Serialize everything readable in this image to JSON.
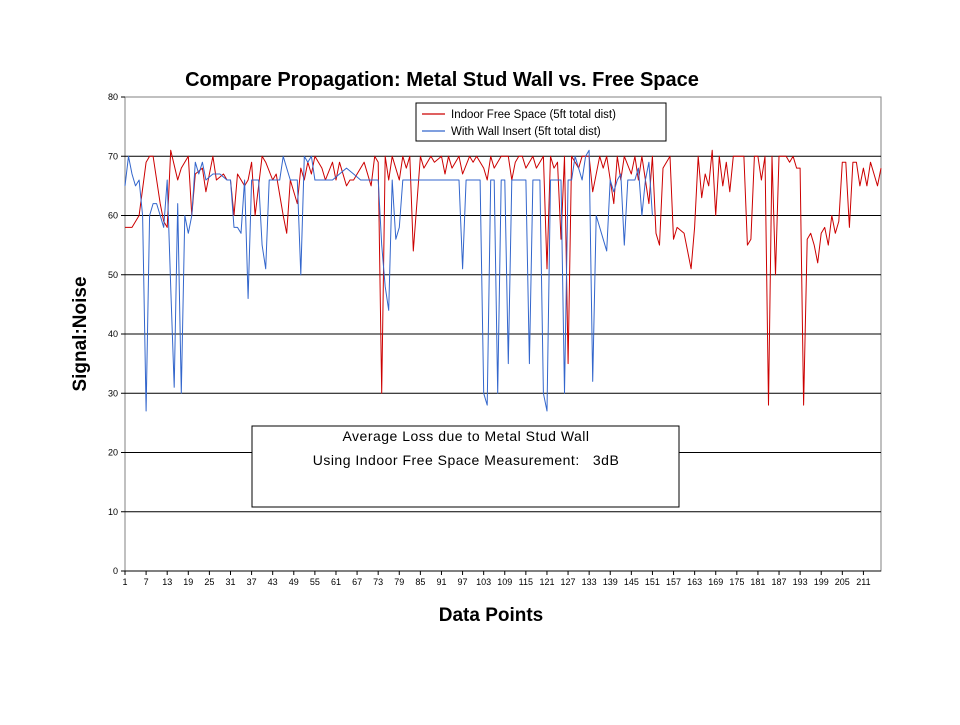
{
  "chart_data": {
    "type": "line",
    "title": "Compare Propagation: Metal Stud Wall vs. Free Space",
    "xlabel": "Data Points",
    "ylabel": "Signal:Noise",
    "ylim": [
      0,
      80
    ],
    "yticks": [
      0,
      10,
      20,
      30,
      40,
      50,
      60,
      70,
      80
    ],
    "xlim": [
      1,
      216
    ],
    "xticks": [
      1,
      7,
      13,
      19,
      25,
      31,
      37,
      43,
      49,
      55,
      61,
      67,
      73,
      79,
      85,
      91,
      97,
      103,
      109,
      115,
      121,
      127,
      133,
      139,
      145,
      151,
      157,
      163,
      169,
      175,
      181,
      187,
      193,
      199,
      205,
      211
    ],
    "grid": "horizontal",
    "legend_position": "top-right",
    "annotation": {
      "line1": "Average Loss due to Metal Stud Wall",
      "line2": "Using Indoor Free Space Measurement:   3dB"
    },
    "series": [
      {
        "name": "Indoor Free Space (5ft total dist)",
        "color": "#cc0000",
        "x": [
          1,
          3,
          5,
          7,
          8,
          9,
          11,
          12,
          13,
          14,
          16,
          17,
          19,
          20,
          21,
          23,
          24,
          26,
          27,
          29,
          30,
          31,
          32,
          33,
          35,
          36,
          37,
          38,
          40,
          41,
          43,
          44,
          46,
          47,
          48,
          50,
          51,
          52,
          53,
          54,
          55,
          57,
          58,
          60,
          61,
          62,
          64,
          65,
          66,
          67,
          69,
          71,
          72,
          73,
          74,
          75,
          76,
          77,
          79,
          80,
          81,
          82,
          83,
          85,
          86,
          88,
          89,
          91,
          92,
          93,
          94,
          96,
          97,
          99,
          100,
          101,
          103,
          104,
          105,
          106,
          108,
          110,
          111,
          112,
          113,
          114,
          115,
          117,
          118,
          120,
          121,
          122,
          123,
          124,
          125,
          126,
          127,
          128,
          130,
          131,
          132,
          133,
          134,
          136,
          137,
          138,
          140,
          141,
          142,
          143,
          145,
          146,
          147,
          148,
          150,
          151,
          152,
          153,
          154,
          156,
          157,
          158,
          160,
          162,
          163,
          164,
          165,
          166,
          167,
          168,
          169,
          170,
          171,
          172,
          173,
          174,
          176,
          177,
          178,
          179,
          180,
          181,
          182,
          183,
          184,
          185,
          186,
          187,
          188,
          189,
          190,
          191,
          192,
          193,
          194,
          195,
          196,
          197,
          198,
          199,
          200,
          201,
          202,
          203,
          204,
          205,
          206,
          207,
          208,
          209,
          210,
          211,
          212,
          213,
          214,
          215,
          216
        ],
        "y": [
          58,
          58,
          60,
          69,
          70,
          70,
          62,
          59,
          58,
          71,
          66,
          68,
          70,
          60,
          67,
          68,
          64,
          70,
          66,
          67,
          66,
          66,
          60,
          67,
          65,
          66,
          69,
          60,
          70,
          69,
          66,
          67,
          60,
          57,
          66,
          62,
          68,
          66,
          69,
          67,
          70,
          68,
          66,
          69,
          66,
          69,
          65,
          66,
          66,
          67,
          69,
          65,
          70,
          69,
          30,
          70,
          66,
          70,
          66,
          70,
          68,
          70,
          54,
          70,
          68,
          70,
          69,
          70,
          67,
          70,
          68,
          70,
          67,
          70,
          69,
          70,
          68,
          66,
          70,
          68,
          70,
          70,
          66,
          69,
          70,
          70,
          68,
          70,
          68,
          70,
          51,
          70,
          68,
          69,
          56,
          70,
          35,
          70,
          68,
          70,
          70,
          70,
          64,
          70,
          68,
          70,
          62,
          70,
          66,
          70,
          67,
          70,
          66,
          70,
          62,
          70,
          57,
          55,
          68,
          70,
          56,
          58,
          57,
          51,
          58,
          70,
          63,
          67,
          65,
          71,
          60,
          70,
          65,
          69,
          64,
          70,
          70,
          70,
          55,
          56,
          70,
          70,
          66,
          70,
          28,
          70,
          50,
          70,
          70,
          70,
          69,
          70,
          68,
          68,
          28,
          56,
          57,
          55,
          52,
          57,
          58,
          55,
          60,
          57,
          59,
          69,
          69,
          58,
          69,
          69,
          65,
          68,
          65,
          69,
          67,
          65,
          68
        ]
      },
      {
        "name": "With Wall Insert (5ft total dist)",
        "color": "#3366cc",
        "x": [
          1,
          2,
          3,
          4,
          5,
          6,
          7,
          8,
          9,
          10,
          11,
          12,
          13,
          14,
          15,
          16,
          17,
          18,
          19,
          20,
          21,
          22,
          23,
          24,
          26,
          28,
          30,
          31,
          32,
          33,
          34,
          35,
          36,
          37,
          38,
          39,
          40,
          41,
          42,
          43,
          44,
          45,
          46,
          47,
          48,
          49,
          50,
          51,
          52,
          53,
          54,
          55,
          56,
          57,
          58,
          60,
          62,
          64,
          66,
          68,
          70,
          71,
          72,
          73,
          74,
          75,
          76,
          77,
          78,
          79,
          80,
          81,
          82,
          84,
          86,
          88,
          90,
          92,
          94,
          96,
          97,
          98,
          99,
          100,
          102,
          103,
          104,
          105,
          106,
          107,
          108,
          109,
          110,
          111,
          112,
          113,
          114,
          115,
          116,
          117,
          118,
          119,
          120,
          121,
          122,
          123,
          124,
          125,
          126,
          127,
          128,
          129,
          130,
          131,
          132,
          133,
          134,
          135,
          136,
          137,
          138,
          139,
          140,
          141,
          142,
          143,
          144,
          145,
          146,
          147,
          148,
          149,
          150,
          151
        ],
        "y": [
          65,
          70,
          67,
          65,
          66,
          60,
          27,
          60,
          62,
          62,
          60,
          58,
          66,
          48,
          31,
          62,
          30,
          60,
          57,
          60,
          69,
          67,
          69,
          66,
          67,
          67,
          66,
          66,
          58,
          58,
          57,
          66,
          46,
          66,
          66,
          66,
          55,
          51,
          66,
          66,
          66,
          66,
          70,
          68,
          66,
          66,
          66,
          50,
          70,
          69,
          70,
          66,
          66,
          66,
          66,
          66,
          67,
          68,
          67,
          66,
          66,
          66,
          66,
          66,
          55,
          48,
          44,
          66,
          56,
          58,
          66,
          66,
          66,
          66,
          66,
          66,
          66,
          66,
          66,
          66,
          51,
          66,
          66,
          66,
          66,
          30,
          28,
          66,
          66,
          30,
          66,
          66,
          35,
          66,
          66,
          66,
          66,
          66,
          35,
          66,
          66,
          66,
          30,
          27,
          66,
          66,
          66,
          66,
          30,
          66,
          66,
          70,
          68,
          66,
          70,
          71,
          32,
          60,
          58,
          56,
          54,
          66,
          64,
          66,
          67,
          55,
          66,
          66,
          66,
          68,
          60,
          66,
          69,
          60
        ]
      }
    ]
  }
}
